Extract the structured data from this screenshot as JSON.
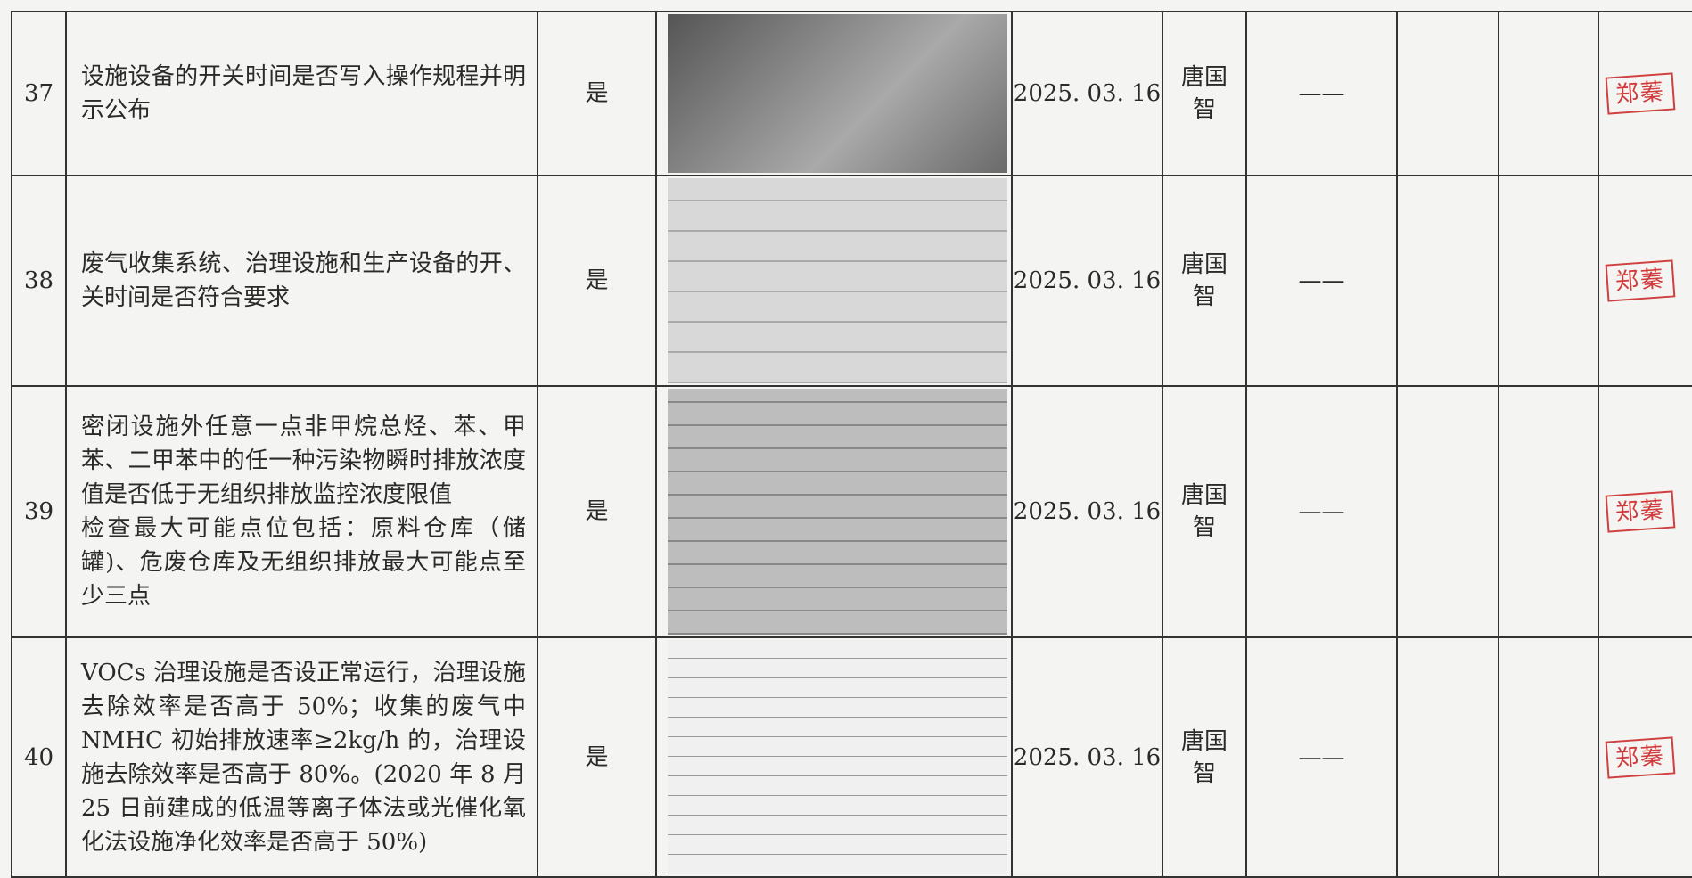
{
  "table": {
    "rows": [
      {
        "no": "37",
        "item": "设施设备的开关时间是否写入操作规程并明示公布",
        "result": "是",
        "date": "2025. 03. 16",
        "person": "唐国智",
        "remark": "——",
        "stamp": "郑蓁"
      },
      {
        "no": "38",
        "item": "废气收集系统、治理设施和生产设备的开、关时间是否符合要求",
        "result": "是",
        "date": "2025. 03. 16",
        "person": "唐国智",
        "remark": "——",
        "stamp": "郑蓁"
      },
      {
        "no": "39",
        "item": "密闭设施外任意一点非甲烷总烃、苯、甲苯、二甲苯中的任一种污染物瞬时排放浓度值是否低于无组织排放监控浓度限值\n检查最大可能点位包括：原料仓库（储罐)、危废仓库及无组织排放最大可能点至少三点",
        "result": "是",
        "date": "2025. 03. 16",
        "person": "唐国智",
        "remark": "——",
        "stamp": "郑蓁"
      },
      {
        "no": "40",
        "item": "VOCs 治理设施是否设正常运行，治理设施去除效率是否高于 50%；收集的废气中 NMHC 初始排放速率≥2kg/h 的，治理设施去除效率是否高于 80%。(2020 年 8 月 25 日前建成的低温等离子体法或光催化氧化法设施净化效率是否高于 50%)",
        "result": "是",
        "date": "2025. 03. 16",
        "person": "唐国智",
        "remark": "——",
        "stamp": "郑蓁"
      }
    ]
  }
}
